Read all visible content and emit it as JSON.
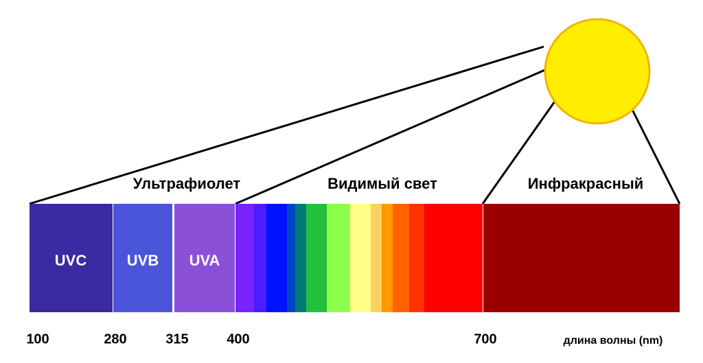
{
  "regions": [
    "Ультрафиолет",
    "Видимый свет",
    "Инфракрасный"
  ],
  "uv_bands": [
    "UVC",
    "UVB",
    "UVA"
  ],
  "ticks": [
    "100",
    "280",
    "315",
    "400",
    "700"
  ],
  "axis_label": "длина волны (nm)"
}
